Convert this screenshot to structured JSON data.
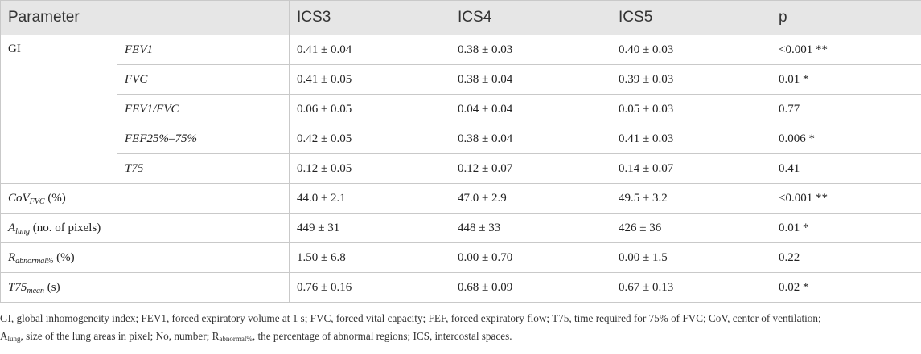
{
  "headers": [
    "Parameter",
    "ICS3",
    "ICS4",
    "ICS5",
    "p"
  ],
  "gi": {
    "label": "GI",
    "rows": [
      {
        "sub": "FEV1",
        "ics3": "0.41 ± 0.04",
        "ics4": "0.38 ± 0.03",
        "ics5": "0.40 ± 0.03",
        "p": "<0.001 **"
      },
      {
        "sub": "FVC",
        "ics3": "0.41 ± 0.05",
        "ics4": "0.38 ± 0.04",
        "ics5": "0.39 ± 0.03",
        "p": "0.01 *"
      },
      {
        "sub": "FEV1/FVC",
        "ics3": "0.06 ± 0.05",
        "ics4": "0.04 ± 0.04",
        "ics5": "0.05 ± 0.03",
        "p": "0.77"
      },
      {
        "sub": "FEF25%–75%",
        "ics3": "0.42 ± 0.05",
        "ics4": "0.38 ± 0.04",
        "ics5": "0.41 ± 0.03",
        "p": "0.006 *"
      },
      {
        "sub": "T75",
        "ics3": "0.12 ± 0.05",
        "ics4": "0.12 ± 0.07",
        "ics5": "0.14 ± 0.07",
        "p": "0.41"
      }
    ]
  },
  "other_rows": [
    {
      "main": "CoV",
      "sub": "FVC",
      "unit": " (%)",
      "ics3": "44.0 ± 2.1",
      "ics4": "47.0 ± 2.9",
      "ics5": "49.5 ± 3.2",
      "p": "<0.001 **"
    },
    {
      "main": "A",
      "sub": "lung",
      "unit": " (no. of pixels)",
      "ics3": "449 ± 31",
      "ics4": "448 ± 33",
      "ics5": "426 ± 36",
      "p": "0.01 *"
    },
    {
      "main": "R",
      "sub": "abnormal%",
      "unit": " (%)",
      "ics3": "1.50 ± 6.8",
      "ics4": "0.00 ± 0.70",
      "ics5": "0.00 ± 1.5",
      "p": "0.22"
    },
    {
      "main": "T75",
      "sub": "mean",
      "unit": " (s)",
      "ics3": "0.76 ± 0.16",
      "ics4": "0.68 ± 0.09",
      "ics5": "0.67 ± 0.13",
      "p": "0.02 *"
    }
  ],
  "notes": {
    "line1": "GI, global inhomogeneity index; FEV1, forced expiratory volume at 1 s; FVC, forced vital capacity; FEF, forced expiratory flow; T75, time required for 75% of FVC; CoV, center of ventilation;",
    "line2_a": "A",
    "line2_a_sub": "lung",
    "line2_b": ", size of the lung areas in pixel; No, number; R",
    "line2_r_sub": "abnormal%",
    "line2_c": ", the percentage of abnormal regions; ICS, intercostal spaces."
  }
}
